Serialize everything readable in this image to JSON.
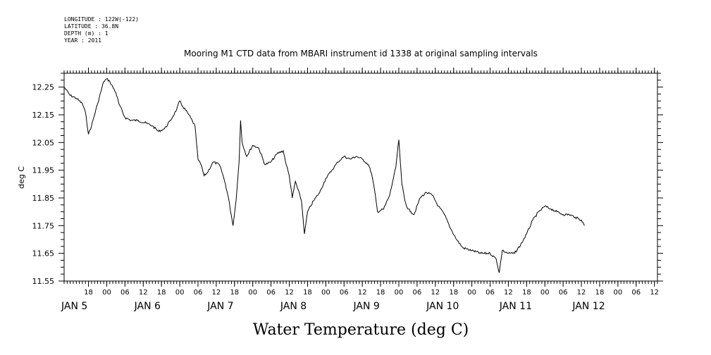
{
  "header": {
    "meta_lines": [
      "LONGITUDE : 122W(-122)",
      "LATITUDE : 36.8N",
      "DEPTH (m) : 1",
      "YEAR : 2011"
    ]
  },
  "chart_data": {
    "type": "line",
    "title": "Mooring M1 CTD data from MBARI instrument id 1338 at original sampling intervals",
    "xlabel": "Water Temperature (deg C)",
    "ylabel": "deg C",
    "xlim": [
      "2011-01-04T10:00",
      "2011-01-12T13:00"
    ],
    "ylim": [
      11.55,
      12.3
    ],
    "y_ticks": [
      "11.55",
      "11.65",
      "11.75",
      "11.85",
      "11.95",
      "12.05",
      "12.15",
      "12.25"
    ],
    "x_hour_ticks": [
      {
        "t": "2011-01-04T18:00",
        "label": "18"
      },
      {
        "t": "2011-01-05T00:00",
        "label": "00"
      },
      {
        "t": "2011-01-05T06:00",
        "label": "06"
      },
      {
        "t": "2011-01-05T12:00",
        "label": "12"
      },
      {
        "t": "2011-01-05T18:00",
        "label": "18"
      },
      {
        "t": "2011-01-06T00:00",
        "label": "00"
      },
      {
        "t": "2011-01-06T06:00",
        "label": "06"
      },
      {
        "t": "2011-01-06T12:00",
        "label": "12"
      },
      {
        "t": "2011-01-06T18:00",
        "label": "18"
      },
      {
        "t": "2011-01-07T00:00",
        "label": "00"
      },
      {
        "t": "2011-01-07T06:00",
        "label": "06"
      },
      {
        "t": "2011-01-07T12:00",
        "label": "12"
      },
      {
        "t": "2011-01-07T18:00",
        "label": "18"
      },
      {
        "t": "2011-01-08T00:00",
        "label": "00"
      },
      {
        "t": "2011-01-08T06:00",
        "label": "06"
      },
      {
        "t": "2011-01-08T12:00",
        "label": "12"
      },
      {
        "t": "2011-01-08T18:00",
        "label": "18"
      },
      {
        "t": "2011-01-09T00:00",
        "label": "00"
      },
      {
        "t": "2011-01-09T06:00",
        "label": "06"
      },
      {
        "t": "2011-01-09T12:00",
        "label": "12"
      },
      {
        "t": "2011-01-09T18:00",
        "label": "18"
      },
      {
        "t": "2011-01-10T00:00",
        "label": "00"
      },
      {
        "t": "2011-01-10T06:00",
        "label": "06"
      },
      {
        "t": "2011-01-10T12:00",
        "label": "12"
      },
      {
        "t": "2011-01-10T18:00",
        "label": "18"
      },
      {
        "t": "2011-01-11T00:00",
        "label": "00"
      },
      {
        "t": "2011-01-11T06:00",
        "label": "06"
      },
      {
        "t": "2011-01-11T12:00",
        "label": "12"
      },
      {
        "t": "2011-01-11T18:00",
        "label": "18"
      },
      {
        "t": "2011-01-12T00:00",
        "label": "00"
      },
      {
        "t": "2011-01-12T06:00",
        "label": "06"
      },
      {
        "t": "2011-01-12T12:00",
        "label": "12"
      }
    ],
    "x_day_labels": [
      {
        "t": "2011-01-04T10:00",
        "label": "JAN  5"
      },
      {
        "t": "2011-01-05T10:00",
        "label": "JAN  6"
      },
      {
        "t": "2011-01-06T10:00",
        "label": "JAN  7"
      },
      {
        "t": "2011-01-07T10:00",
        "label": "JAN  8"
      },
      {
        "t": "2011-01-08T10:00",
        "label": "JAN  9"
      },
      {
        "t": "2011-01-09T10:00",
        "label": "JAN 10"
      },
      {
        "t": "2011-01-10T10:00",
        "label": "JAN 11"
      },
      {
        "t": "2011-01-11T10:00",
        "label": "JAN 12"
      }
    ],
    "grid": false,
    "series": [
      {
        "color": "#000000",
        "points": [
          [
            "2011-01-04T10:00",
            12.25
          ],
          [
            "2011-01-04T12:00",
            12.22
          ],
          [
            "2011-01-04T14:00",
            12.21
          ],
          [
            "2011-01-04T16:00",
            12.19
          ],
          [
            "2011-01-04T17:00",
            12.16
          ],
          [
            "2011-01-04T18:00",
            12.08
          ],
          [
            "2011-01-04T19:00",
            12.11
          ],
          [
            "2011-01-04T21:00",
            12.19
          ],
          [
            "2011-01-04T23:00",
            12.27
          ],
          [
            "2011-01-05T00:00",
            12.28
          ],
          [
            "2011-01-05T01:00",
            12.27
          ],
          [
            "2011-01-05T03:00",
            12.23
          ],
          [
            "2011-01-05T04:00",
            12.19
          ],
          [
            "2011-01-05T06:00",
            12.14
          ],
          [
            "2011-01-05T08:00",
            12.13
          ],
          [
            "2011-01-05T10:00",
            12.13
          ],
          [
            "2011-01-05T13:00",
            12.12
          ],
          [
            "2011-01-05T15:00",
            12.11
          ],
          [
            "2011-01-05T17:00",
            12.09
          ],
          [
            "2011-01-05T19:00",
            12.1
          ],
          [
            "2011-01-05T21:00",
            12.13
          ],
          [
            "2011-01-05T23:00",
            12.17
          ],
          [
            "2011-01-06T00:00",
            12.2
          ],
          [
            "2011-01-06T01:00",
            12.18
          ],
          [
            "2011-01-06T03:00",
            12.15
          ],
          [
            "2011-01-06T05:00",
            12.11
          ],
          [
            "2011-01-06T05:30",
            12.05
          ],
          [
            "2011-01-06T06:00",
            11.99
          ],
          [
            "2011-01-06T07:00",
            11.97
          ],
          [
            "2011-01-06T08:00",
            11.93
          ],
          [
            "2011-01-06T09:00",
            11.94
          ],
          [
            "2011-01-06T11:00",
            11.98
          ],
          [
            "2011-01-06T13:00",
            11.97
          ],
          [
            "2011-01-06T14:00",
            11.94
          ],
          [
            "2011-01-06T15:00",
            11.9
          ],
          [
            "2011-01-06T16:00",
            11.85
          ],
          [
            "2011-01-06T17:30",
            11.75
          ],
          [
            "2011-01-06T18:30",
            11.84
          ],
          [
            "2011-01-06T19:30",
            11.98
          ],
          [
            "2011-01-06T20:00",
            12.13
          ],
          [
            "2011-01-06T20:30",
            12.05
          ],
          [
            "2011-01-06T22:00",
            12.0
          ],
          [
            "2011-01-07T00:00",
            12.04
          ],
          [
            "2011-01-07T02:00",
            12.03
          ],
          [
            "2011-01-07T04:00",
            11.97
          ],
          [
            "2011-01-07T06:00",
            11.98
          ],
          [
            "2011-01-07T08:00",
            12.01
          ],
          [
            "2011-01-07T10:00",
            12.02
          ],
          [
            "2011-01-07T11:00",
            11.97
          ],
          [
            "2011-01-07T12:00",
            11.93
          ],
          [
            "2011-01-07T13:00",
            11.85
          ],
          [
            "2011-01-07T14:00",
            11.91
          ],
          [
            "2011-01-07T16:00",
            11.84
          ],
          [
            "2011-01-07T17:00",
            11.72
          ],
          [
            "2011-01-07T18:00",
            11.8
          ],
          [
            "2011-01-07T20:00",
            11.84
          ],
          [
            "2011-01-07T22:00",
            11.87
          ],
          [
            "2011-01-08T00:00",
            11.92
          ],
          [
            "2011-01-08T02:00",
            11.95
          ],
          [
            "2011-01-08T04:00",
            11.98
          ],
          [
            "2011-01-08T06:00",
            12.0
          ],
          [
            "2011-01-08T08:00",
            11.99
          ],
          [
            "2011-01-08T10:00",
            12.0
          ],
          [
            "2011-01-08T12:00",
            11.99
          ],
          [
            "2011-01-08T14:00",
            11.97
          ],
          [
            "2011-01-08T15:00",
            11.94
          ],
          [
            "2011-01-08T16:00",
            11.88
          ],
          [
            "2011-01-08T17:00",
            11.8
          ],
          [
            "2011-01-08T19:00",
            11.81
          ],
          [
            "2011-01-08T21:00",
            11.86
          ],
          [
            "2011-01-08T22:00",
            11.91
          ],
          [
            "2011-01-08T23:00",
            11.96
          ],
          [
            "2011-01-09T00:00",
            12.06
          ],
          [
            "2011-01-09T00:30",
            11.98
          ],
          [
            "2011-01-09T01:00",
            11.9
          ],
          [
            "2011-01-09T02:00",
            11.84
          ],
          [
            "2011-01-09T03:00",
            11.81
          ],
          [
            "2011-01-09T04:00",
            11.8
          ],
          [
            "2011-01-09T05:00",
            11.79
          ],
          [
            "2011-01-09T07:00",
            11.85
          ],
          [
            "2011-01-09T09:00",
            11.87
          ],
          [
            "2011-01-09T11:00",
            11.86
          ],
          [
            "2011-01-09T13:00",
            11.82
          ],
          [
            "2011-01-09T15:00",
            11.79
          ],
          [
            "2011-01-09T17:00",
            11.74
          ],
          [
            "2011-01-09T19:00",
            11.7
          ],
          [
            "2011-01-09T21:00",
            11.67
          ],
          [
            "2011-01-10T00:00",
            11.66
          ],
          [
            "2011-01-10T03:00",
            11.65
          ],
          [
            "2011-01-10T06:00",
            11.65
          ],
          [
            "2011-01-10T08:00",
            11.63
          ],
          [
            "2011-01-10T09:00",
            11.58
          ],
          [
            "2011-01-10T10:00",
            11.66
          ],
          [
            "2011-01-10T12:00",
            11.65
          ],
          [
            "2011-01-10T14:00",
            11.65
          ],
          [
            "2011-01-10T16:00",
            11.68
          ],
          [
            "2011-01-10T18:00",
            11.72
          ],
          [
            "2011-01-10T20:00",
            11.77
          ],
          [
            "2011-01-10T22:00",
            11.8
          ],
          [
            "2011-01-11T00:00",
            11.82
          ],
          [
            "2011-01-11T02:00",
            11.81
          ],
          [
            "2011-01-11T04:00",
            11.8
          ],
          [
            "2011-01-11T06:00",
            11.79
          ],
          [
            "2011-01-11T08:00",
            11.79
          ],
          [
            "2011-01-11T10:00",
            11.78
          ],
          [
            "2011-01-11T12:00",
            11.77
          ],
          [
            "2011-01-11T13:00",
            11.75
          ]
        ]
      }
    ]
  }
}
